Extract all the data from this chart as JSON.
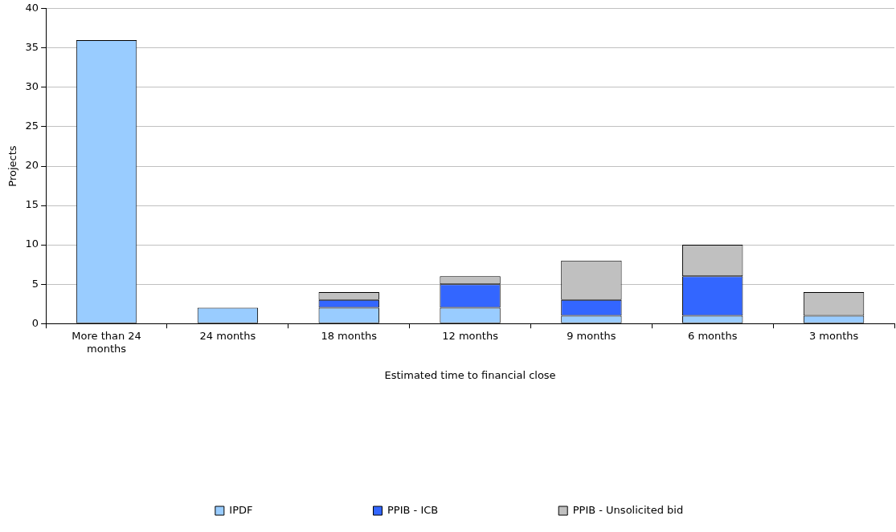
{
  "chart_data": {
    "type": "bar",
    "stacked": true,
    "xlabel": "Estimated time to financial close",
    "ylabel": "Projects",
    "categories": [
      "More than 24 months",
      "24 months",
      "18 months",
      "12 months",
      "9 months",
      "6 months",
      "3 months"
    ],
    "series": [
      {
        "name": "IPDF",
        "color": "#99ccff",
        "values": [
          36,
          2,
          2,
          2,
          1,
          1,
          1
        ]
      },
      {
        "name": "PPIB - ICB",
        "color": "#3366ff",
        "values": [
          0,
          0,
          1,
          3,
          2,
          5,
          0
        ]
      },
      {
        "name": "PPIB - Unsolicited bid",
        "color": "#c0c0c0",
        "values": [
          0,
          0,
          1,
          1,
          5,
          4,
          3
        ]
      }
    ],
    "ylim": [
      0,
      40
    ],
    "yticks": [
      0,
      5,
      10,
      15,
      20,
      25,
      30,
      35,
      40
    ],
    "grid": "y",
    "legend": "bottom"
  }
}
